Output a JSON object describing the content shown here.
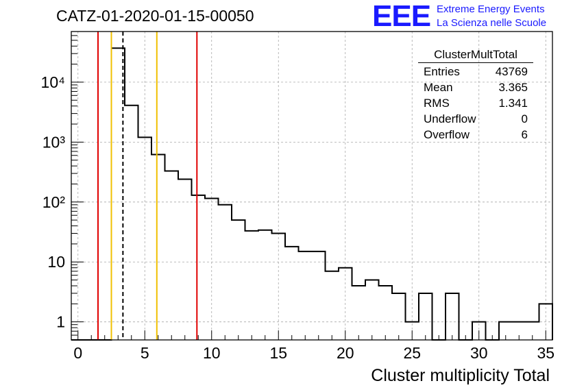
{
  "chart_data": {
    "type": "bar",
    "title": "CATZ-01-2020-01-15-00050",
    "xlabel": "Cluster multiplicity Total",
    "ylabel": "",
    "xlim": [
      -0.5,
      35.5
    ],
    "ylim": [
      0.5,
      70000
    ],
    "yscale": "log",
    "grid": true,
    "x_ticks": [
      0,
      5,
      10,
      15,
      20,
      25,
      30,
      35
    ],
    "y_ticks": [
      {
        "value": 1,
        "label": "1"
      },
      {
        "value": 10,
        "label": "10"
      },
      {
        "value": 100,
        "label": "10²"
      },
      {
        "value": 1000,
        "label": "10³"
      },
      {
        "value": 10000,
        "label": "10⁴"
      }
    ],
    "bin_edges": [
      -0.5,
      35.5
    ],
    "bin_count": 36,
    "counts": [
      0,
      0,
      0,
      37000,
      4100,
      1200,
      620,
      330,
      240,
      130,
      115,
      90,
      50,
      33,
      34,
      30,
      18,
      15,
      15,
      7,
      8,
      4,
      5,
      4,
      3,
      1,
      3,
      0,
      3,
      0,
      1,
      0,
      1,
      1,
      1,
      2
    ],
    "vertical_lines": [
      {
        "x": 1.5,
        "color": "#e00000",
        "style": "solid"
      },
      {
        "x": 2.5,
        "color": "#f0c000",
        "style": "solid"
      },
      {
        "x": 3.365,
        "color": "#000000",
        "style": "dashed"
      },
      {
        "x": 5.9,
        "color": "#f0c000",
        "style": "solid"
      },
      {
        "x": 8.9,
        "color": "#e00000",
        "style": "solid"
      }
    ],
    "stats": {
      "name": "ClusterMultTotal",
      "rows": [
        {
          "label": "Entries",
          "value": "43769"
        },
        {
          "label": "Mean",
          "value": "3.365"
        },
        {
          "label": "RMS",
          "value": "1.341"
        },
        {
          "label": "Underflow",
          "value": "0"
        },
        {
          "label": "Overflow",
          "value": "6"
        }
      ]
    }
  },
  "logo": {
    "mark": "EEE",
    "line1": "Extreme Energy Events",
    "line2": "La Scienza nelle Scuole",
    "color": "#1a1aff"
  }
}
